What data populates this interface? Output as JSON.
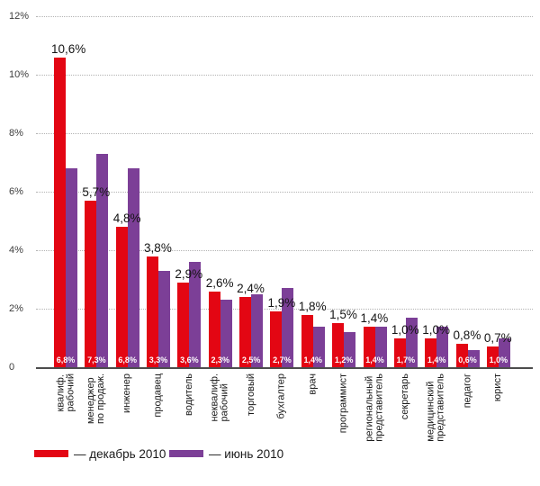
{
  "chart_data": {
    "type": "bar",
    "title": "",
    "xlabel": "",
    "ylabel": "",
    "ylim": [
      0,
      12
    ],
    "grid": "horizontal-dotted",
    "legend_position": "bottom-left",
    "yticks": [
      {
        "value": 12,
        "label": "12%"
      },
      {
        "value": 10,
        "label": "10%"
      },
      {
        "value": 8,
        "label": "8%"
      },
      {
        "value": 6,
        "label": "6%"
      },
      {
        "value": 4,
        "label": "4%"
      },
      {
        "value": 2,
        "label": "2%"
      },
      {
        "value": 0,
        "label": "0"
      }
    ],
    "categories": [
      {
        "lines": [
          "квалиф.",
          "рабочий"
        ]
      },
      {
        "lines": [
          "менеджер",
          "по продаж."
        ]
      },
      {
        "lines": [
          "инженер"
        ]
      },
      {
        "lines": [
          "продавец"
        ]
      },
      {
        "lines": [
          "водитель"
        ]
      },
      {
        "lines": [
          "неквалиф.",
          "рабочий"
        ]
      },
      {
        "lines": [
          "торговый"
        ]
      },
      {
        "lines": [
          "бухгалтер"
        ]
      },
      {
        "lines": [
          "врач"
        ]
      },
      {
        "lines": [
          "программист"
        ]
      },
      {
        "lines": [
          "региональный",
          "представитель"
        ]
      },
      {
        "lines": [
          "секретарь"
        ]
      },
      {
        "lines": [
          "медицинский",
          "представитель"
        ]
      },
      {
        "lines": [
          "педагог"
        ]
      },
      {
        "lines": [
          "юрист"
        ]
      }
    ],
    "series": [
      {
        "name": "декабрь 2010",
        "legend_label": "— декабрь 2010",
        "color": "#e30613",
        "values": [
          10.6,
          5.7,
          4.8,
          3.8,
          2.9,
          2.6,
          2.4,
          1.9,
          1.8,
          1.5,
          1.4,
          1.0,
          1.0,
          0.8,
          0.7
        ],
        "value_labels": [
          "10,6%",
          "5,7%",
          "4,8%",
          "3,8%",
          "2,9%",
          "2,6%",
          "2,4%",
          "1,9%",
          "1,8%",
          "1,5%",
          "1,4%",
          "1,0%",
          "1,0%",
          "0,8%",
          "0,7%"
        ]
      },
      {
        "name": "июнь 2010",
        "legend_label": "— июнь 2010",
        "color": "#7c3f97",
        "values": [
          6.8,
          7.3,
          6.8,
          3.3,
          3.6,
          2.3,
          2.5,
          2.7,
          1.4,
          1.2,
          1.4,
          1.7,
          1.4,
          0.6,
          1.0
        ],
        "value_labels": [
          "6,8%",
          "7,3%",
          "6,8%",
          "3,3%",
          "3,6%",
          "2,3%",
          "2,5%",
          "2,7%",
          "1,4%",
          "1,2%",
          "1,4%",
          "1,7%",
          "1,4%",
          "0,6%",
          "1,0%"
        ]
      }
    ]
  }
}
